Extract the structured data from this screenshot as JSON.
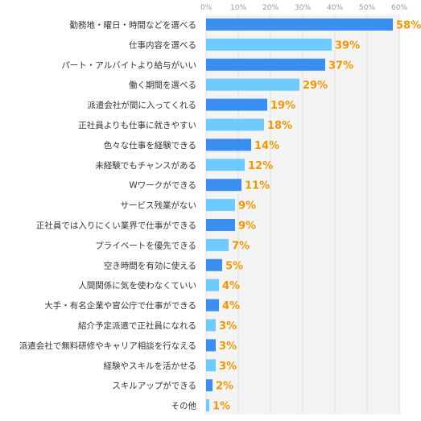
{
  "chart_data": {
    "type": "bar",
    "orientation": "horizontal",
    "xlim": [
      0,
      60
    ],
    "grid": true,
    "tick_labels": [
      "0%",
      "10%",
      "20%",
      "30%",
      "40%",
      "50%",
      "60%"
    ],
    "categories": [
      "勤務地・曜日・時間などを選べる",
      "仕事内容を選べる",
      "パート・アルバイトより給与がいい",
      "働く期間を選べる",
      "派遣会社が間に入ってくれる",
      "正社員よりも仕事に就きやすい",
      "色々な仕事を経験できる",
      "未経験でもチャンスがある",
      "Wワークができる",
      "サービス残業がない",
      "正社員では入りにくい業界で仕事ができる",
      "プライベートを優先できる",
      "空き時間を有効に使える",
      "人間関係に気を使わなくていい",
      "大手・有名企業や官公庁で仕事ができる",
      "紹介予定派遣で正社員になれる",
      "派遣会社で無料研修やキャリア相談を行なえる",
      "経験やスキルを活かせる",
      "スキルアップができる",
      "その他"
    ],
    "values": [
      58,
      39,
      37,
      29,
      19,
      18,
      14,
      12,
      11,
      9,
      9,
      7,
      5,
      4,
      4,
      3,
      3,
      3,
      2,
      1
    ],
    "value_labels": [
      "58%",
      "39%",
      "37%",
      "29%",
      "19%",
      "18%",
      "14%",
      "12%",
      "11%",
      "9%",
      "9%",
      "7%",
      "5%",
      "4%",
      "4%",
      "3%",
      "3%",
      "3%",
      "2%",
      "1%"
    ],
    "colors": {
      "bar_dark": "#3b8ff0",
      "bar_light": "#6ecbff",
      "value_label": "#f39800",
      "category_label": "#333333",
      "tick_label": "#999999",
      "grid": "#dddddd",
      "plot_bg": "#f4f4f4"
    }
  }
}
